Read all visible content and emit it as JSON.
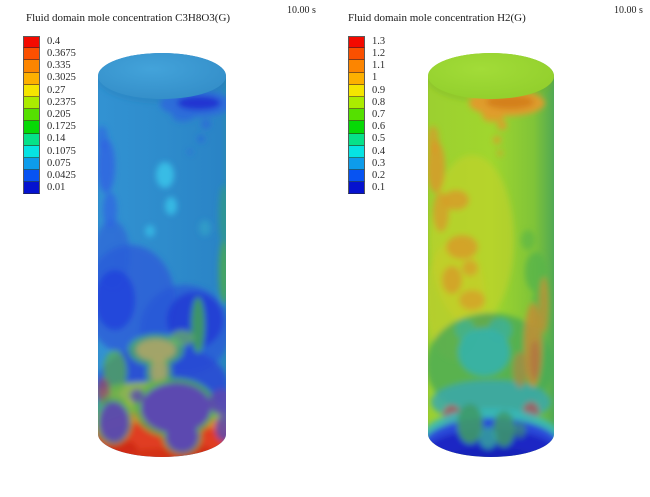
{
  "panels": [
    {
      "title": "Fluid domain mole concentration C3H8O3(G)",
      "time_label": "10.00 s",
      "legend": {
        "labels": [
          "0.4",
          "0.3675",
          "0.335",
          "0.3025",
          "0.27",
          "0.2375",
          "0.205",
          "0.1725",
          "0.14",
          "0.1075",
          "0.075",
          "0.0425",
          "0.01"
        ],
        "colors": [
          "#f40a00",
          "#fb5000",
          "#fc8500",
          "#fdb000",
          "#f5e500",
          "#abeb00",
          "#55e000",
          "#06d906",
          "#06e189",
          "#06e3e3",
          "#0d9ceb",
          "#0753f2",
          "#0512cf"
        ]
      }
    },
    {
      "title": "Fluid domain mole concentration H2(G)",
      "time_label": "10.00 s",
      "legend": {
        "labels": [
          "1.3",
          "1.2",
          "1.1",
          "1",
          "0.9",
          "0.8",
          "0.7",
          "0.6",
          "0.5",
          "0.4",
          "0.3",
          "0.2",
          "0.1"
        ],
        "colors": [
          "#f40a00",
          "#fb5000",
          "#fc8500",
          "#fdb000",
          "#f5e500",
          "#abeb00",
          "#55e000",
          "#06d906",
          "#06e189",
          "#06e3e3",
          "#0d9ceb",
          "#0753f2",
          "#0512cf"
        ]
      }
    }
  ],
  "chart_data": [
    {
      "type": "heatmap",
      "render_style": "3d-cylinder-contour",
      "title": "Fluid domain mole concentration C3H8O3(G)",
      "species": "C3H8O3(G)",
      "time_s": 10.0,
      "colorbar": {
        "min": 0.01,
        "max": 0.4,
        "step": 0.0325,
        "levels": [
          0.4,
          0.3675,
          0.335,
          0.3025,
          0.27,
          0.2375,
          0.205,
          0.1725,
          0.14,
          0.1075,
          0.075,
          0.0425,
          0.01
        ],
        "colors": [
          "#f40a00",
          "#fb5000",
          "#fc8500",
          "#fdb000",
          "#f5e500",
          "#abeb00",
          "#55e000",
          "#06d906",
          "#06e189",
          "#06e3e3",
          "#0d9ceb",
          "#0753f2",
          "#0512cf"
        ],
        "orientation": "vertical",
        "position": "left"
      },
      "field_summary": {
        "upper_body": "mostly 0.075-0.14 (medium blue) with a low pocket approx 0.01-0.0425 (navy) near top center-right and royal-blue streaks on left edge",
        "mid_body": "0.0425-0.075 (deeper blue) with small cyan zones approx 0.14 and a green streak approx 0.2 on right edge",
        "lower_body": "deep blue 0.01-0.075 with olive patch approx 0.24-0.27 and green fringes approx 0.17-0.2",
        "bottom_rim": "high concentration 0.335-0.4 (orange/red); translucent blue front over red back renders purple lobes"
      }
    },
    {
      "type": "heatmap",
      "render_style": "3d-cylinder-contour",
      "title": "Fluid domain mole concentration H2(G)",
      "species": "H2(G)",
      "time_s": 10.0,
      "colorbar": {
        "min": 0.1,
        "max": 1.3,
        "step": 0.1,
        "levels": [
          1.3,
          1.2,
          1.1,
          1.0,
          0.9,
          0.8,
          0.7,
          0.6,
          0.5,
          0.4,
          0.3,
          0.2,
          0.1
        ],
        "colors": [
          "#f40a00",
          "#fb5000",
          "#fc8500",
          "#fdb000",
          "#f5e500",
          "#abeb00",
          "#55e000",
          "#06d906",
          "#06e189",
          "#06e3e3",
          "#0d9ceb",
          "#0753f2",
          "#0512cf"
        ],
        "orientation": "vertical",
        "position": "left"
      },
      "field_summary": {
        "upper_body": "mostly 0.8-0.9 (yellow-green) with high pockets approx 1.0-1.1 (amber/orange) near top center-right and on left edge",
        "mid_body": "0.7-1.0 yellow with scattered amber patches; greener approx 0.6-0.7 toward right edge",
        "lower_body": "0.4-0.6 (green/teal) with amber streaks approx 1.0 along right side and small crimson spots approx 1.2",
        "bottom_rim": "low concentration 0.1-0.2 (deep blue) with cyan fringe approx 0.4-0.5 and green lobes dipping into rim"
      }
    }
  ],
  "colors": {
    "background": "#ffffff",
    "text": "#1a1a1a",
    "left_cylinder_base": "#2e8ccc",
    "right_cylinder_base": "#9cd42c"
  }
}
